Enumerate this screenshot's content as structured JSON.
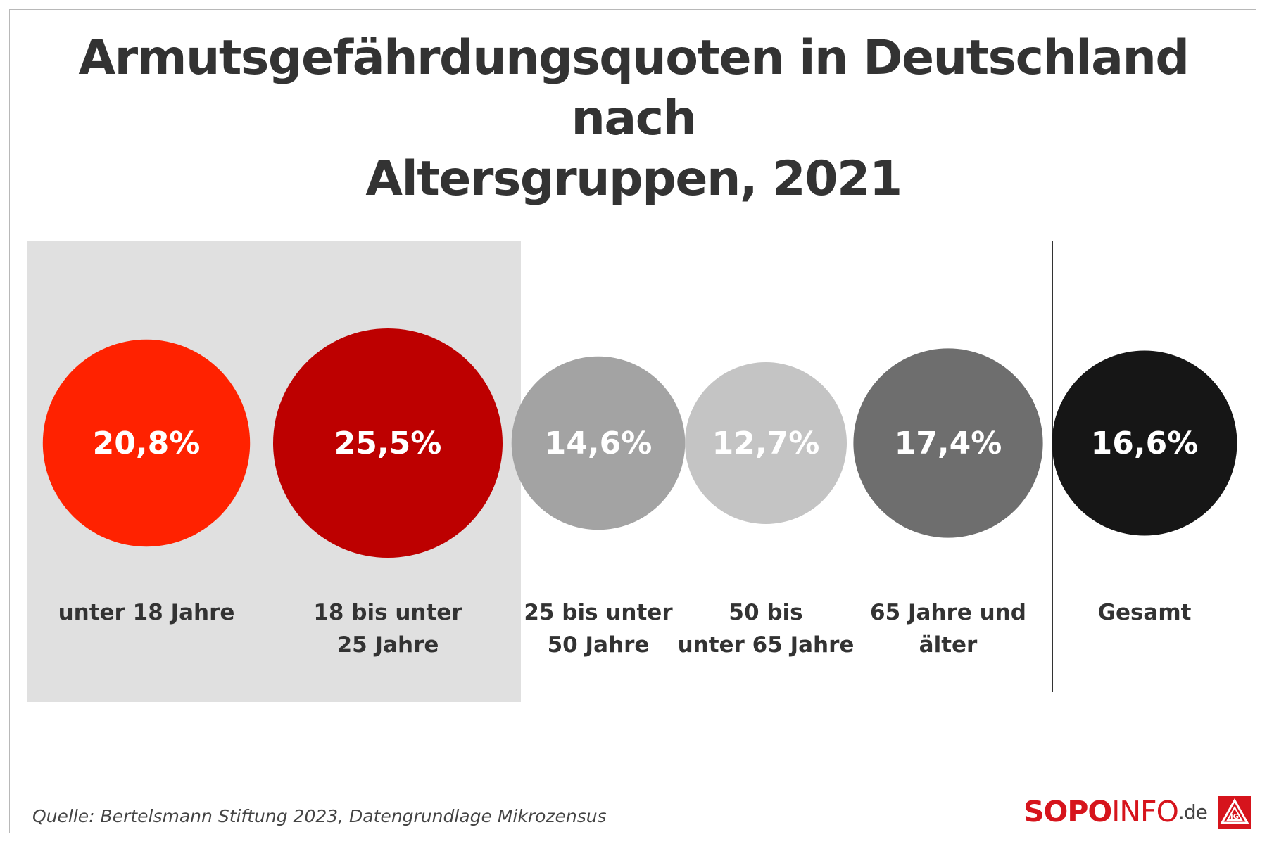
{
  "title_line1": "Armutsgefährdungsquoten in Deutschland nach",
  "title_line2": "Altersgruppen, 2021",
  "source": "Quelle: Bertelsmann Stiftung 2023, Datengrundlage Mikrozensus",
  "logo": {
    "sopo": "SOPO",
    "info": "INFO",
    "de": ".de",
    "badge_icon": "ig-metall-logo-icon"
  },
  "chart_data": {
    "type": "bubble",
    "unit": "%",
    "highlight": "unter 18 Jahre und 18 bis unter 25 Jahre (grau hinterlegt)",
    "categories": [
      {
        "label_lines": [
          "unter 18 Jahre"
        ],
        "value": 20.8,
        "value_label": "20,8%",
        "color": "#ff2200"
      },
      {
        "label_lines": [
          "18 bis unter",
          "25 Jahre"
        ],
        "value": 25.5,
        "value_label": "25,5%",
        "color": "#bd0000"
      },
      {
        "label_lines": [
          "25 bis unter",
          "50 Jahre"
        ],
        "value": 14.6,
        "value_label": "14,6%",
        "color": "#a3a3a3"
      },
      {
        "label_lines": [
          "50 bis",
          "unter 65 Jahre"
        ],
        "value": 12.7,
        "value_label": "12,7%",
        "color": "#c4c4c4"
      },
      {
        "label_lines": [
          "65 Jahre und",
          "älter"
        ],
        "value": 17.4,
        "value_label": "17,4%",
        "color": "#6e6e6e"
      },
      {
        "label_lines": [
          "Gesamt"
        ],
        "value": 16.6,
        "value_label": "16,6%",
        "color": "#161616"
      }
    ]
  }
}
